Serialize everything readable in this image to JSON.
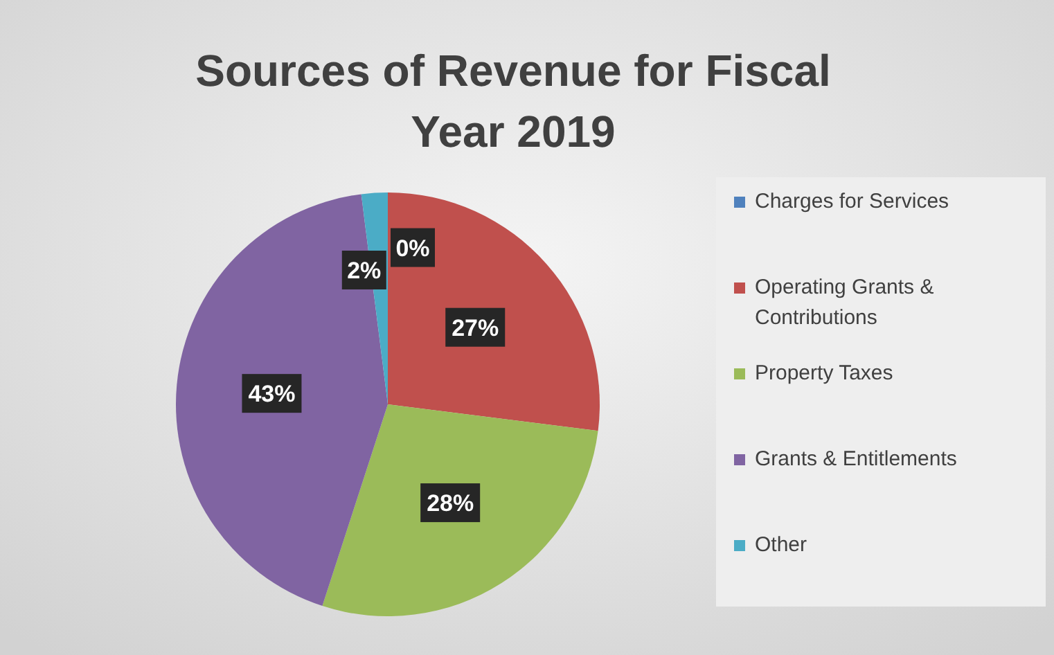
{
  "chart_data": {
    "type": "pie",
    "title": "Sources of Revenue for Fiscal Year 2019",
    "categories": [
      "Charges for Services",
      "Operating Grants & Contributions",
      "Property Taxes",
      "Grants & Entitlements",
      "Other"
    ],
    "values": [
      0,
      27,
      28,
      43,
      2
    ],
    "value_labels": [
      "0%",
      "27%",
      "28%",
      "43%",
      "2%"
    ],
    "colors": [
      "#4f81bd",
      "#c0504d",
      "#9bbb59",
      "#8064a2",
      "#4bacc6"
    ],
    "legend": "right"
  }
}
